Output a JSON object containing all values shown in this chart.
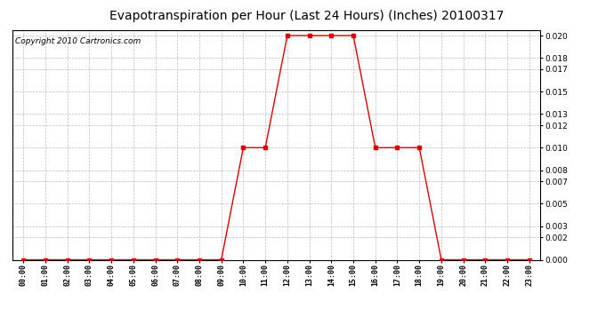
{
  "title": "Evapotranspiration per Hour (Last 24 Hours) (Inches) 20100317",
  "copyright": "Copyright 2010 Cartronics.com",
  "hours": [
    "00:00",
    "01:00",
    "02:00",
    "03:00",
    "04:00",
    "05:00",
    "06:00",
    "07:00",
    "08:00",
    "09:00",
    "10:00",
    "11:00",
    "12:00",
    "13:00",
    "14:00",
    "15:00",
    "16:00",
    "17:00",
    "18:00",
    "19:00",
    "20:00",
    "21:00",
    "22:00",
    "23:00"
  ],
  "values": [
    0.0,
    0.0,
    0.0,
    0.0,
    0.0,
    0.0,
    0.0,
    0.0,
    0.0,
    0.0,
    0.01,
    0.01,
    0.02,
    0.02,
    0.02,
    0.02,
    0.01,
    0.01,
    0.01,
    0.0,
    0.0,
    0.0,
    0.0,
    0.0
  ],
  "line_color": "#dd0000",
  "marker": "s",
  "marker_size": 2.5,
  "background_color": "#ffffff",
  "grid_color": "#bbbbbb",
  "ylim": [
    0.0,
    0.0205
  ],
  "yticks": [
    0.0,
    0.002,
    0.003,
    0.005,
    0.007,
    0.008,
    0.01,
    0.012,
    0.013,
    0.015,
    0.017,
    0.018,
    0.02
  ],
  "title_fontsize": 10,
  "copyright_fontsize": 6.5,
  "figwidth": 6.9,
  "figheight": 3.75,
  "dpi": 100
}
